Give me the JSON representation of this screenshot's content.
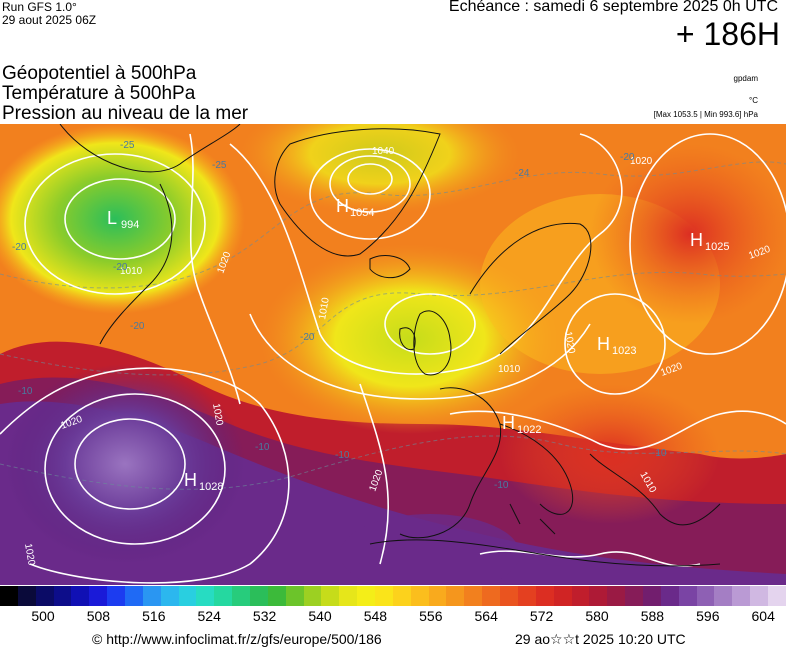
{
  "header": {
    "run_model": "Run GFS 1.0°",
    "run_date": "29 aout 2025 06Z",
    "echeance": "Echéance : samedi 6 septembre 2025 0h UTC",
    "horizon": "+ 186H"
  },
  "titles": {
    "line1": "Géopotentiel à 500hPa",
    "line2": "Température à 500hPa",
    "line3": "Pression au niveau de la mer"
  },
  "units": {
    "geopotential": "gpdam",
    "temperature": "°C",
    "pressure_range": "[Max 1053.5 | Min 993.6] hPa"
  },
  "map": {
    "centers": [
      {
        "letter": "L",
        "value": "994"
      },
      {
        "letter": "H",
        "value": "1054"
      },
      {
        "letter": "H",
        "value": "1025"
      },
      {
        "letter": "H",
        "value": "1023"
      },
      {
        "letter": "H",
        "value": "1022"
      },
      {
        "letter": "H",
        "value": "1028"
      }
    ],
    "isobar_labels": [
      "1040",
      "1020",
      "1010",
      "1020",
      "1020",
      "1020",
      "1010",
      "1020",
      "1020",
      "1020",
      "1010",
      "1020",
      "1020",
      "1010"
    ],
    "isotherm_labels": [
      "-25",
      "-25",
      "-20",
      "-20",
      "-20",
      "-24",
      "-20",
      "-20",
      "-10",
      "-10",
      "-10",
      "-10",
      "-10"
    ]
  },
  "legend": {
    "labels": [
      "500",
      "508",
      "516",
      "524",
      "532",
      "540",
      "548",
      "556",
      "564",
      "572",
      "580",
      "588",
      "596",
      "604"
    ],
    "colors": [
      "#000000",
      "#0a0a3a",
      "#0b0b66",
      "#0d0d8a",
      "#1010b4",
      "#1a1ad8",
      "#1c3cf0",
      "#1f6af5",
      "#2a96f2",
      "#2cb7ee",
      "#29cfe0",
      "#27dcc2",
      "#25d8a0",
      "#27cc7c",
      "#2bbe5a",
      "#3cba3a",
      "#6cc42a",
      "#9cd022",
      "#c6dc1a",
      "#e6e61a",
      "#f4ee18",
      "#fae41a",
      "#fcd21c",
      "#fbbe1d",
      "#f9aa1d",
      "#f5961d",
      "#f2801e",
      "#ee6a1f",
      "#ea541f",
      "#e44020",
      "#dc2e22",
      "#d02424",
      "#c01e2c",
      "#ae1a36",
      "#9a1a44",
      "#861c58",
      "#721e6e",
      "#6a2a8a",
      "#7a44a4",
      "#8e60b4",
      "#a47ec4",
      "#ba9ad4",
      "#d0b8e2",
      "#e4d4ee"
    ]
  },
  "footer": {
    "copyright": "© http://www.infoclimat.fr/z/gfs/europe/500/186",
    "timestamp": "29 ao☆☆t 2025 10:20 UTC"
  }
}
